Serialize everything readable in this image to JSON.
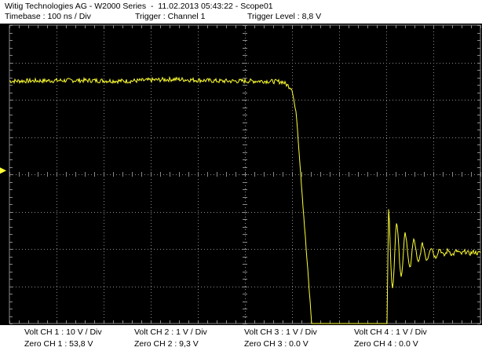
{
  "header": {
    "title": "Witig Technologies AG - W2000 Series  -  11.02.2013 05:43:22 - Scope01",
    "timebase": "Timebase : 100 ns / Div",
    "trigger": "Trigger : Channel 1",
    "trigger_level": "Trigger Level : 8,8 V"
  },
  "channels": [
    {
      "volt": "Volt CH 1 : 10 V / Div",
      "zero": "Zero CH 1 : 53,8 V"
    },
    {
      "volt": "Volt CH 2 : 1 V / Div",
      "zero": "Zero CH 2 : 9,3 V"
    },
    {
      "volt": "Volt CH 3 : 1 V / Div",
      "zero": "Zero CH 3 : 0.0 V"
    },
    {
      "volt": "Volt CH 4 : 1 V / Div",
      "zero": "Zero CH 4 : 0.0 V"
    }
  ],
  "colors": {
    "background": "#000000",
    "grid": "#8a8a8a",
    "trace_ch1": "#ffff33",
    "panel": "#ffffff"
  },
  "chart_data": {
    "type": "line",
    "series": [
      {
        "x_div": [
          0,
          1.5,
          2.5,
          3.5,
          4.5,
          5.4,
          5.8,
          6.0,
          6.1,
          6.3,
          6.5,
          6.6,
          6.7,
          8.0,
          9.2,
          10.0
        ],
        "y_div": [
          2.5,
          2.52,
          2.5,
          2.55,
          2.5,
          2.5,
          2.48,
          2.3,
          1.5,
          -2.0,
          -5.4,
          -5.4,
          -5.4,
          -5.4,
          -5.4,
          -5.4
        ]
      }
    ],
    "grid": true,
    "divisions": {
      "x": 10,
      "y": 8
    }
  }
}
